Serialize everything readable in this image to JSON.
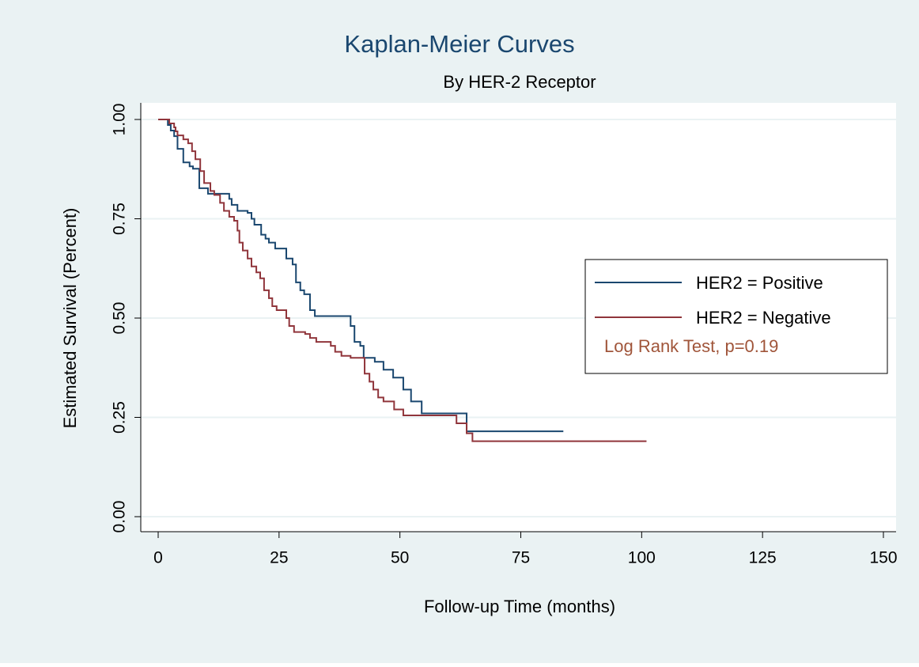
{
  "chart_data": {
    "type": "step",
    "title": "Kaplan-Meier Curves",
    "subtitle": "By HER-2 Receptor",
    "x_label": "Follow-up Time (months)",
    "y_label": "Estimated Survival (Percent)",
    "xlim": [
      0,
      150
    ],
    "xticks": [
      0,
      25,
      50,
      75,
      100,
      125,
      150
    ],
    "ylim": [
      0,
      1
    ],
    "yticks": [
      {
        "value": 0,
        "label": "0.00"
      },
      {
        "value": 0.25,
        "label": "0.25"
      },
      {
        "value": 0.5,
        "label": "0.50"
      },
      {
        "value": 0.75,
        "label": "0.75"
      },
      {
        "value": 1,
        "label": "1.00"
      }
    ],
    "grid": true,
    "legend": "right",
    "annotation": "Log Rank Test, p=0.19",
    "series": [
      {
        "name": "HER2 = Positive",
        "color": "#1a476f",
        "x": [
          0,
          2,
          2.6,
          3.3,
          4,
          5.2,
          6.5,
          7.2,
          8.5,
          10.3,
          14.7,
          15.2,
          16.4,
          18.5,
          19.3,
          19.9,
          21.3,
          22.2,
          22.9,
          24.2,
          26.5,
          27.8,
          28.5,
          29.4,
          30.2,
          31.4,
          32.4,
          39.8,
          40.6,
          41.8,
          42.5,
          44.8,
          46.6,
          48.6,
          50.7,
          52.3,
          54.5,
          63.8,
          83.8
        ],
        "values": [
          1,
          0.986,
          0.972,
          0.958,
          0.926,
          0.892,
          0.882,
          0.876,
          0.827,
          0.813,
          0.8,
          0.785,
          0.77,
          0.765,
          0.75,
          0.735,
          0.71,
          0.7,
          0.69,
          0.675,
          0.65,
          0.635,
          0.59,
          0.57,
          0.56,
          0.52,
          0.505,
          0.48,
          0.44,
          0.43,
          0.4,
          0.39,
          0.37,
          0.35,
          0.32,
          0.29,
          0.26,
          0.215,
          0.215
        ]
      },
      {
        "name": "HER2 = Negative",
        "color": "#90353b",
        "x": [
          0,
          2.3,
          3.3,
          3.6,
          4,
          5.2,
          6.2,
          7,
          7.7,
          8.7,
          9.5,
          10.8,
          11.6,
          12.8,
          13.6,
          14.7,
          15.7,
          16.4,
          16.8,
          17.5,
          18.5,
          19.3,
          20.3,
          21.1,
          21.9,
          22.9,
          23.6,
          24.5,
          26.5,
          27.1,
          28.1,
          30.4,
          31.4,
          32.7,
          35.7,
          36.6,
          37.9,
          39.8,
          42.7,
          43.7,
          44.5,
          45.5,
          46.6,
          48.8,
          50.7,
          61.7,
          63.8,
          65,
          101
        ],
        "values": [
          1,
          0.99,
          0.98,
          0.97,
          0.96,
          0.95,
          0.94,
          0.92,
          0.9,
          0.87,
          0.84,
          0.82,
          0.81,
          0.79,
          0.77,
          0.755,
          0.745,
          0.72,
          0.69,
          0.67,
          0.65,
          0.63,
          0.615,
          0.6,
          0.57,
          0.55,
          0.53,
          0.52,
          0.5,
          0.48,
          0.465,
          0.46,
          0.45,
          0.44,
          0.43,
          0.415,
          0.405,
          0.4,
          0.36,
          0.34,
          0.32,
          0.3,
          0.29,
          0.27,
          0.255,
          0.235,
          0.21,
          0.19,
          0.19
        ]
      }
    ]
  }
}
